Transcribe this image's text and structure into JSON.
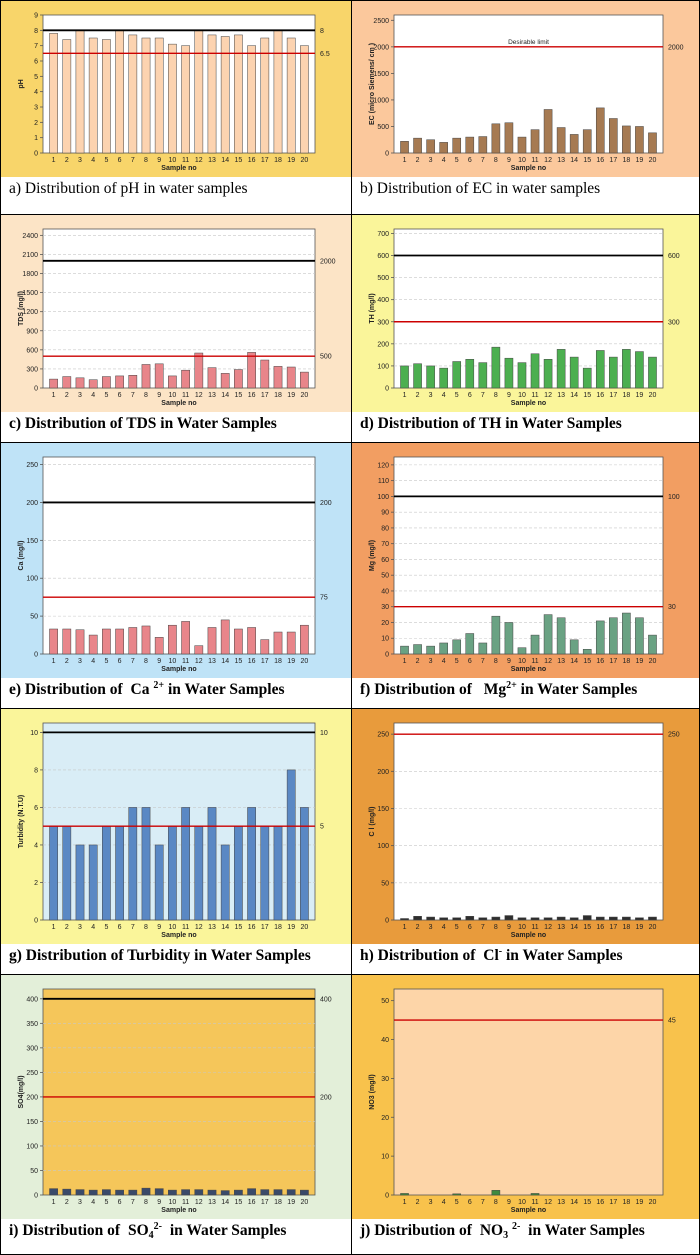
{
  "charts": [
    {
      "id": "a",
      "panel_bg": "#f8d56a",
      "plot_bg": "#ffffff",
      "bar_color": "#fcd3b0",
      "caption": "a) Distribution of pH in water samples",
      "chart_data": {
        "type": "bar",
        "xlabel": "Sample no",
        "ylabel": "pH",
        "ylim": [
          0,
          9
        ],
        "yticks": [
          0,
          1,
          2,
          3,
          4,
          5,
          6,
          7,
          8,
          9
        ],
        "categories": [
          "1",
          "2",
          "3",
          "4",
          "5",
          "6",
          "7",
          "8",
          "9",
          "10",
          "11",
          "12",
          "13",
          "14",
          "15",
          "16",
          "17",
          "18",
          "19",
          "20"
        ],
        "values": [
          7.8,
          7.4,
          8.0,
          7.5,
          7.4,
          8.0,
          7.7,
          7.5,
          7.5,
          7.1,
          7.0,
          8.0,
          7.7,
          7.6,
          7.7,
          7.0,
          7.5,
          8.0,
          7.5,
          7.0
        ],
        "limit_lines": [
          {
            "value": 8,
            "label": "8",
            "color": "#000000"
          },
          {
            "value": 6.5,
            "label": "6.5",
            "color": "#cc0000"
          }
        ],
        "annotation": "",
        "grid": false
      }
    },
    {
      "id": "b",
      "panel_bg": "#fbc89c",
      "plot_bg": "#ffffff",
      "bar_color": "#a67a52",
      "caption": "b) Distribution of EC in water samples",
      "chart_data": {
        "type": "bar",
        "xlabel": "Sample no",
        "ylabel": "EC (micro Siemens/ cm )",
        "ylim": [
          0,
          2600
        ],
        "yticks": [
          0,
          500,
          1000,
          1500,
          2000,
          2500
        ],
        "categories": [
          "1",
          "2",
          "3",
          "4",
          "5",
          "6",
          "7",
          "8",
          "9",
          "10",
          "11",
          "12",
          "13",
          "14",
          "15",
          "16",
          "17",
          "18",
          "19",
          "20"
        ],
        "values": [
          220,
          280,
          250,
          200,
          280,
          300,
          310,
          550,
          570,
          300,
          440,
          820,
          480,
          350,
          440,
          850,
          650,
          510,
          500,
          380
        ],
        "limit_lines": [
          {
            "value": 2000,
            "label": "2000",
            "color": "#cc0000"
          }
        ],
        "annotation": "Desirable limit",
        "grid": false
      }
    },
    {
      "id": "c",
      "panel_bg": "#fce4c6",
      "plot_bg": "#ffffff",
      "bar_color": "#e8858a",
      "caption": "c) Distribution of TDS in Water Samples",
      "chart_data": {
        "type": "bar",
        "xlabel": "Sample no",
        "ylabel": "TDS (mg/l)",
        "ylim": [
          0,
          2500
        ],
        "yticks": [
          0,
          300,
          600,
          900,
          1200,
          1500,
          1800,
          2100,
          2400
        ],
        "categories": [
          "1",
          "2",
          "3",
          "4",
          "5",
          "6",
          "7",
          "8",
          "9",
          "10",
          "11",
          "12",
          "13",
          "14",
          "15",
          "16",
          "17",
          "18",
          "19",
          "20"
        ],
        "values": [
          140,
          180,
          160,
          130,
          180,
          190,
          200,
          370,
          380,
          190,
          280,
          550,
          320,
          230,
          290,
          560,
          440,
          340,
          330,
          250
        ],
        "limit_lines": [
          {
            "value": 2000,
            "label": "2000",
            "color": "#000000"
          },
          {
            "value": 500,
            "label": "500",
            "color": "#cc0000"
          }
        ],
        "annotation": "",
        "grid": true
      }
    },
    {
      "id": "d",
      "panel_bg": "#faf59a",
      "plot_bg": "#ffffff",
      "bar_color": "#4caf50",
      "caption": "d) Distribution of TH in Water Samples",
      "chart_data": {
        "type": "bar",
        "xlabel": "Sample no",
        "ylabel": "TH (mg/l)",
        "ylim": [
          0,
          720
        ],
        "yticks": [
          0,
          100,
          200,
          300,
          400,
          500,
          600,
          700
        ],
        "categories": [
          "1",
          "2",
          "3",
          "4",
          "5",
          "6",
          "7",
          "8",
          "9",
          "10",
          "11",
          "12",
          "13",
          "14",
          "15",
          "16",
          "17",
          "18",
          "19",
          "20"
        ],
        "values": [
          100,
          110,
          100,
          90,
          120,
          130,
          115,
          185,
          135,
          115,
          155,
          130,
          175,
          140,
          90,
          170,
          140,
          175,
          165,
          140
        ],
        "limit_lines": [
          {
            "value": 600,
            "label": "600",
            "color": "#000000"
          },
          {
            "value": 300,
            "label": "300",
            "color": "#cc0000"
          }
        ],
        "annotation": "",
        "grid": true
      }
    },
    {
      "id": "e",
      "panel_bg": "#bfe3f7",
      "plot_bg": "#ffffff",
      "bar_color": "#e8858a",
      "caption_html": "e) Distribution of <span class=\"sp\"></span>Ca <sup>2+</sup> in Water Samples",
      "chart_data": {
        "type": "bar",
        "xlabel": "Sample no",
        "ylabel": "Ca (mg/l)",
        "ylim": [
          0,
          260
        ],
        "yticks": [
          0,
          50,
          100,
          150,
          200,
          250
        ],
        "categories": [
          "1",
          "2",
          "3",
          "4",
          "5",
          "6",
          "7",
          "8",
          "9",
          "10",
          "11",
          "12",
          "13",
          "14",
          "15",
          "16",
          "17",
          "18",
          "19",
          "20"
        ],
        "values": [
          33,
          33,
          32,
          25,
          33,
          33,
          35,
          37,
          22,
          38,
          43,
          11,
          35,
          45,
          33,
          35,
          19,
          29,
          29,
          38
        ],
        "limit_lines": [
          {
            "value": 200,
            "label": "200",
            "color": "#000000"
          },
          {
            "value": 75,
            "label": "75",
            "color": "#cc0000"
          }
        ],
        "annotation": "",
        "grid": true
      }
    },
    {
      "id": "f",
      "panel_bg": "#f29e62",
      "plot_bg": "#ffffff",
      "bar_color": "#6aa283",
      "caption_html": "f) Distribution of <span class=\"sp\"></span> Mg<sup>2+</sup> in Water Samples",
      "chart_data": {
        "type": "bar",
        "xlabel": "Sample no",
        "ylabel": "Mg (mg/l)",
        "ylim": [
          0,
          125
        ],
        "yticks": [
          0,
          10,
          20,
          30,
          40,
          50,
          60,
          70,
          80,
          90,
          100,
          110,
          120
        ],
        "categories": [
          "1",
          "2",
          "3",
          "4",
          "5",
          "6",
          "7",
          "8",
          "9",
          "10",
          "11",
          "12",
          "13",
          "14",
          "15",
          "16",
          "17",
          "18",
          "19",
          "20"
        ],
        "values": [
          5,
          6,
          5,
          7,
          9,
          13,
          7,
          24,
          20,
          4,
          12,
          25,
          23,
          9,
          3,
          21,
          23,
          26,
          23,
          12
        ],
        "limit_lines": [
          {
            "value": 100,
            "label": "100",
            "color": "#000000"
          },
          {
            "value": 30,
            "label": "30",
            "color": "#cc0000"
          }
        ],
        "annotation": "",
        "grid": true
      }
    },
    {
      "id": "g",
      "panel_bg": "#faf59a",
      "plot_bg": "#d9edf6",
      "bar_color": "#5a88c4",
      "caption": "g) Distribution of Turbidity in Water Samples",
      "chart_data": {
        "type": "bar",
        "xlabel": "Sample no",
        "ylabel": "Turbidity (N.T.U)",
        "ylim": [
          0,
          10.5
        ],
        "yticks": [
          0,
          2,
          4,
          6,
          8,
          10
        ],
        "categories": [
          "1",
          "2",
          "3",
          "4",
          "5",
          "6",
          "7",
          "8",
          "9",
          "10",
          "11",
          "12",
          "13",
          "14",
          "15",
          "16",
          "17",
          "18",
          "19",
          "20"
        ],
        "values": [
          5,
          5,
          4,
          4,
          5,
          5,
          6,
          6,
          4,
          5,
          6,
          5,
          6,
          4,
          5,
          6,
          5,
          5,
          8,
          6
        ],
        "limit_lines": [
          {
            "value": 10,
            "label": "10",
            "color": "#000000"
          },
          {
            "value": 5,
            "label": "5",
            "color": "#cc0000"
          }
        ],
        "annotation": "",
        "grid": true
      }
    },
    {
      "id": "h",
      "panel_bg": "#e89b3c",
      "plot_bg": "#ffffff",
      "bar_color": "#2e2e2e",
      "caption_html": "h) Distribution of <span class=\"sp\"></span>Cl<sup>-</sup> in Water Samples",
      "chart_data": {
        "type": "bar",
        "xlabel": "Sample no",
        "ylabel": "C l (mg/l)",
        "ylim": [
          0,
          265
        ],
        "yticks": [
          0,
          50,
          100,
          150,
          200,
          250
        ],
        "categories": [
          "1",
          "2",
          "3",
          "4",
          "5",
          "6",
          "7",
          "8",
          "9",
          "10",
          "11",
          "12",
          "13",
          "14",
          "15",
          "16",
          "17",
          "18",
          "19",
          "20"
        ],
        "values": [
          2,
          5,
          4,
          3,
          3,
          5,
          3,
          4,
          6,
          3,
          3,
          3,
          4,
          3,
          6,
          4,
          4,
          4,
          3,
          4
        ],
        "limit_lines": [
          {
            "value": 250,
            "label": "250",
            "color": "#cc0000"
          }
        ],
        "annotation": "",
        "grid": true
      }
    },
    {
      "id": "i",
      "panel_bg": "#e3efd9",
      "plot_bg": "#f5c65a",
      "bar_color": "#3a4a6a",
      "caption_html": "i) Distribution of <span class=\"sp\"></span>SO<sub>4</sub><sup>2-</sup> <span class=\"sp\"></span>in Water Samples",
      "chart_data": {
        "type": "bar",
        "xlabel": "Sample no",
        "ylabel": "SO4(mg/l)",
        "ylim": [
          0,
          420
        ],
        "yticks": [
          0,
          50,
          100,
          150,
          200,
          250,
          300,
          350,
          400
        ],
        "categories": [
          "1",
          "2",
          "3",
          "4",
          "5",
          "6",
          "7",
          "8",
          "9",
          "10",
          "11",
          "12",
          "13",
          "14",
          "15",
          "16",
          "17",
          "18",
          "19",
          "20"
        ],
        "values": [
          13,
          12,
          11,
          10,
          11,
          10,
          10,
          14,
          13,
          10,
          11,
          11,
          10,
          9,
          10,
          13,
          11,
          11,
          11,
          10
        ],
        "limit_lines": [
          {
            "value": 400,
            "label": "400",
            "color": "#000000"
          },
          {
            "value": 200,
            "label": "200",
            "color": "#cc0000"
          }
        ],
        "annotation": "",
        "grid": true
      }
    },
    {
      "id": "j",
      "panel_bg": "#f8c24c",
      "plot_bg": "#fdd5a8",
      "bar_color": "#3f8a3f",
      "caption_html": "j) Distribution of <span class=\"sp\"></span>NO<sub>3</sub> <sup>2-</sup> <span class=\"sp\"></span>in Water Samples",
      "chart_data": {
        "type": "bar",
        "xlabel": "Sample no",
        "ylabel": "NO3 (mg/l)",
        "ylim": [
          0,
          53
        ],
        "yticks": [
          0,
          10,
          20,
          30,
          40,
          50
        ],
        "categories": [
          "1",
          "2",
          "3",
          "4",
          "5",
          "6",
          "7",
          "8",
          "9",
          "10",
          "11",
          "12",
          "13",
          "14",
          "15",
          "16",
          "17",
          "18",
          "19",
          "20"
        ],
        "values": [
          0.4,
          0,
          0,
          0,
          0.3,
          0,
          0,
          1.2,
          0,
          0,
          0.4,
          0,
          0,
          0,
          0,
          0,
          0,
          0,
          0,
          0
        ],
        "limit_lines": [
          {
            "value": 45,
            "label": "45",
            "color": "#cc0000"
          }
        ],
        "annotation": "",
        "grid": false
      }
    }
  ]
}
